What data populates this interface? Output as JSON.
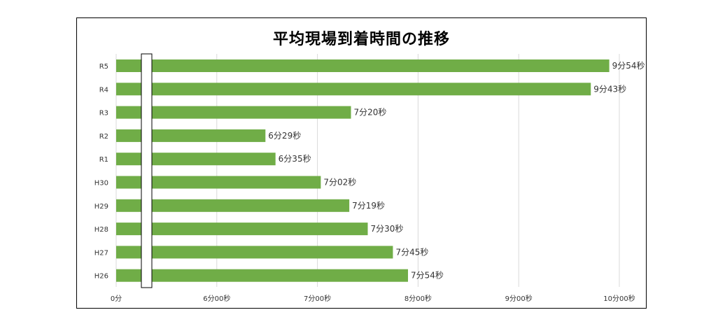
{
  "chart_data": {
    "type": "bar",
    "orientation": "horizontal",
    "title": "平均現場到着時間の推移",
    "categories": [
      "R5",
      "R4",
      "R3",
      "R2",
      "R1",
      "H30",
      "H29",
      "H28",
      "H27",
      "H26"
    ],
    "values": [
      594,
      583,
      440,
      389,
      395,
      422,
      439,
      450,
      465,
      474
    ],
    "value_labels": [
      "9分54秒",
      "9分43秒",
      "7分20秒",
      "6分29秒",
      "6分35秒",
      "7分02秒",
      "7分19秒",
      "7分30秒",
      "7分45秒",
      "7分54秒"
    ],
    "xticks": [
      {
        "value": 300,
        "label": "0分"
      },
      {
        "value": 360,
        "label": "6分00秒"
      },
      {
        "value": 420,
        "label": "7分00秒"
      },
      {
        "value": 480,
        "label": "8分00秒"
      },
      {
        "value": 540,
        "label": "9分00秒"
      },
      {
        "value": 600,
        "label": "10分00秒"
      }
    ],
    "axis_break": true,
    "grid": true,
    "bar_color": "#70ad47",
    "grid_color": "#d9d9d9"
  }
}
